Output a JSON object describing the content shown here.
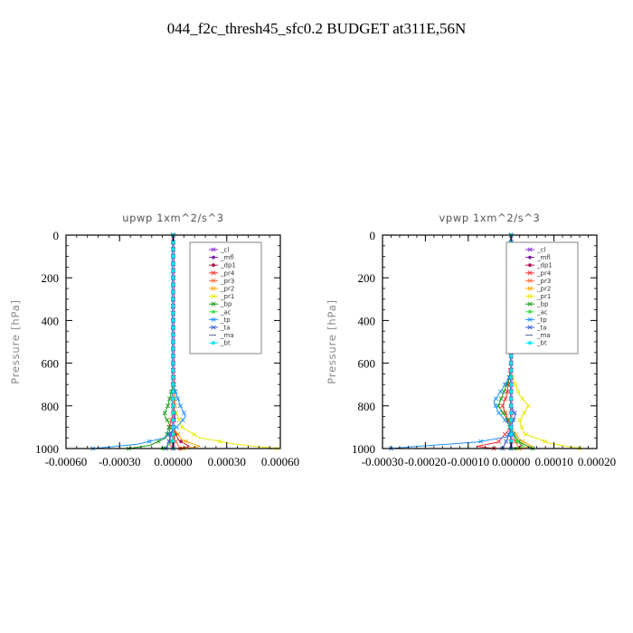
{
  "title": "044_f2c_thresh45_sfc0.2  BUDGET at311E,56N",
  "chart_data": [
    {
      "type": "line",
      "title": "upwp   1xm^2/s^3",
      "ylabel": "Pressure [hPa]",
      "xlabel": "",
      "xlim": [
        -0.0006,
        0.0006
      ],
      "ylim": [
        1000,
        0
      ],
      "xticks": [
        -0.0006,
        -0.0003,
        0.0,
        0.0003,
        0.0006
      ],
      "xtick_labels": [
        "-0.00060",
        "-0.00030",
        "0.00000",
        "0.00030",
        "0.00060"
      ],
      "yticks": [
        0,
        200,
        400,
        600,
        800,
        1000
      ],
      "ytick_labels": [
        "0",
        "200",
        "400",
        "600",
        "800",
        "1000"
      ],
      "legend_position": "top-right",
      "series": [
        {
          "name": "_cl",
          "color": "#8a2be2",
          "marker": "x",
          "points": [
            [
              0,
              0
            ],
            [
              0,
              200
            ],
            [
              0,
              400
            ],
            [
              0,
              600
            ],
            [
              0,
              800
            ],
            [
              0,
              1000
            ]
          ]
        },
        {
          "name": "_mfl",
          "color": "#7b1fa2",
          "marker": "dot",
          "points": [
            [
              0,
              0
            ],
            [
              0,
              200
            ],
            [
              0,
              400
            ],
            [
              0,
              600
            ],
            [
              0,
              800
            ],
            [
              0,
              1000
            ]
          ]
        },
        {
          "name": "_dp1",
          "color": "#b0174f",
          "marker": "dot",
          "points": [
            [
              0,
              0
            ],
            [
              0,
              600
            ],
            [
              0,
              800
            ],
            [
              0,
              900
            ],
            [
              3e-05,
              960
            ],
            [
              9e-05,
              990
            ],
            [
              4e-05,
              1000
            ]
          ]
        },
        {
          "name": "_pr4",
          "color": "#ff3030",
          "marker": "x",
          "points": [
            [
              0,
              0
            ],
            [
              0,
              600
            ],
            [
              1e-05,
              800
            ],
            [
              -2e-05,
              900
            ],
            [
              -2e-05,
              980
            ],
            [
              0,
              1000
            ]
          ]
        },
        {
          "name": "_pr3",
          "color": "#ff6a3a",
          "marker": "x",
          "points": [
            [
              0,
              0
            ],
            [
              0,
              600
            ],
            [
              0,
              800
            ],
            [
              0,
              900
            ],
            [
              1e-05,
              960
            ],
            [
              4e-05,
              1000
            ]
          ]
        },
        {
          "name": "_pr2",
          "color": "#ffa500",
          "marker": "x",
          "points": [
            [
              0,
              0
            ],
            [
              0,
              600
            ],
            [
              0,
              800
            ],
            [
              0,
              900
            ],
            [
              5e-05,
              960
            ],
            [
              0.00015,
              990
            ],
            [
              6e-05,
              1000
            ]
          ]
        },
        {
          "name": "_pr1",
          "color": "#e8e800",
          "marker": "x",
          "points": [
            [
              0,
              0
            ],
            [
              0,
              700
            ],
            [
              1e-05,
              820
            ],
            [
              5e-05,
              900
            ],
            [
              0.00015,
              950
            ],
            [
              0.00035,
              980
            ],
            [
              0.00058,
              1000
            ]
          ]
        },
        {
          "name": "_bp",
          "color": "#1a9a1a",
          "marker": "x",
          "points": [
            [
              0,
              0
            ],
            [
              0,
              700
            ],
            [
              -3e-05,
              800
            ],
            [
              -5e-05,
              840
            ],
            [
              -2e-05,
              890
            ],
            [
              -4e-05,
              950
            ],
            [
              -0.00013,
              985
            ],
            [
              -0.00025,
              1000
            ]
          ]
        },
        {
          "name": "_ac",
          "color": "#40e040",
          "marker": "dot",
          "points": [
            [
              0,
              0
            ],
            [
              0,
              900
            ],
            [
              0,
              950
            ],
            [
              -2e-05,
              980
            ],
            [
              -6e-05,
              1000
            ]
          ]
        },
        {
          "name": "_tp",
          "color": "#1e90ff",
          "marker": "x",
          "points": [
            [
              0,
              0
            ],
            [
              0,
              700
            ],
            [
              4e-05,
              800
            ],
            [
              7e-05,
              850
            ],
            [
              2e-05,
              900
            ],
            [
              -5e-05,
              950
            ],
            [
              -0.0002,
              980
            ],
            [
              -0.00045,
              1000
            ]
          ]
        },
        {
          "name": "_ta",
          "color": "#3a5fcd",
          "marker": "x",
          "points": [
            [
              0,
              0
            ],
            [
              0,
              800
            ],
            [
              1e-05,
              850
            ],
            [
              0,
              900
            ],
            [
              -2e-05,
              960
            ],
            [
              -4e-05,
              1000
            ]
          ]
        },
        {
          "name": "_ma",
          "color": "#5a6a90",
          "marker": "dash",
          "points": [
            [
              0,
              0
            ],
            [
              0,
              1000
            ]
          ]
        },
        {
          "name": "_bt",
          "color": "#00e5ee",
          "marker": "dot",
          "points": [
            [
              0,
              0
            ],
            [
              0,
              1000
            ]
          ]
        }
      ]
    },
    {
      "type": "line",
      "title": "vpwp   1xm^2/s^3",
      "ylabel": "Pressure [hPa]",
      "xlabel": "",
      "xlim": [
        -0.0003,
        0.0002
      ],
      "ylim": [
        1000,
        0
      ],
      "xticks": [
        -0.0003,
        -0.0002,
        -0.0001,
        0.0,
        0.0001,
        0.0002
      ],
      "xtick_labels": [
        "-0.00030",
        "-0.00020",
        "-0.00010",
        "0.00000",
        "0.00010",
        "0.00020"
      ],
      "yticks": [
        0,
        200,
        400,
        600,
        800,
        1000
      ],
      "ytick_labels": [
        "0",
        "200",
        "400",
        "600",
        "800",
        "1000"
      ],
      "legend_position": "top-right",
      "series": [
        {
          "name": "_cl",
          "color": "#8a2be2",
          "marker": "x",
          "points": [
            [
              0,
              0
            ],
            [
              0,
              200
            ],
            [
              0,
              400
            ],
            [
              0,
              600
            ],
            [
              0,
              800
            ],
            [
              0,
              1000
            ]
          ]
        },
        {
          "name": "_mfl",
          "color": "#7b1fa2",
          "marker": "dot",
          "points": [
            [
              0,
              0
            ],
            [
              0,
              200
            ],
            [
              0,
              400
            ],
            [
              0,
              600
            ],
            [
              0,
              800
            ],
            [
              0,
              1000
            ]
          ]
        },
        {
          "name": "_dp1",
          "color": "#b0174f",
          "marker": "dot",
          "points": [
            [
              0,
              0
            ],
            [
              0,
              800
            ],
            [
              0,
              900
            ],
            [
              1e-05,
              960
            ],
            [
              2.5e-05,
              985
            ],
            [
              1e-05,
              1000
            ]
          ]
        },
        {
          "name": "_pr4",
          "color": "#ff3030",
          "marker": "x",
          "points": [
            [
              0,
              0
            ],
            [
              0,
              600
            ],
            [
              -1e-05,
              750
            ],
            [
              -2e-05,
              800
            ],
            [
              0,
              900
            ],
            [
              -3e-05,
              970
            ],
            [
              -8e-05,
              990
            ],
            [
              -4e-05,
              1000
            ]
          ]
        },
        {
          "name": "_pr3",
          "color": "#ff6a3a",
          "marker": "x",
          "points": [
            [
              0,
              0
            ],
            [
              0,
              800
            ],
            [
              0,
              900
            ],
            [
              1e-05,
              970
            ],
            [
              2e-05,
              1000
            ]
          ]
        },
        {
          "name": "_pr2",
          "color": "#ffa500",
          "marker": "x",
          "points": [
            [
              0,
              0
            ],
            [
              0,
              800
            ],
            [
              0,
              900
            ],
            [
              2e-05,
              960
            ],
            [
              5e-05,
              990
            ],
            [
              2e-05,
              1000
            ]
          ]
        },
        {
          "name": "_pr1",
          "color": "#e8e800",
          "marker": "x",
          "points": [
            [
              0,
              0
            ],
            [
              0,
              650
            ],
            [
              2e-05,
              750
            ],
            [
              4e-05,
              800
            ],
            [
              2e-05,
              870
            ],
            [
              3e-05,
              930
            ],
            [
              9e-05,
              975
            ],
            [
              0.00016,
              1000
            ]
          ]
        },
        {
          "name": "_bp",
          "color": "#1a9a1a",
          "marker": "x",
          "points": [
            [
              0,
              0
            ],
            [
              0,
              650
            ],
            [
              -2e-05,
              750
            ],
            [
              -3e-05,
              800
            ],
            [
              -1e-05,
              860
            ],
            [
              0,
              920
            ],
            [
              2e-05,
              970
            ],
            [
              5e-05,
              1000
            ]
          ]
        },
        {
          "name": "_ac",
          "color": "#40e040",
          "marker": "dot",
          "points": [
            [
              0,
              0
            ],
            [
              0,
              900
            ],
            [
              1e-05,
              960
            ],
            [
              3e-05,
              990
            ],
            [
              1e-05,
              1000
            ]
          ]
        },
        {
          "name": "_tp",
          "color": "#1e90ff",
          "marker": "x",
          "points": [
            [
              0,
              0
            ],
            [
              0,
              650
            ],
            [
              -2e-05,
              720
            ],
            [
              -4e-05,
              780
            ],
            [
              -3e-05,
              830
            ],
            [
              0,
              900
            ],
            [
              5e-06,
              940
            ],
            [
              -8e-05,
              970
            ],
            [
              -0.00022,
              990
            ],
            [
              -0.00028,
              1000
            ]
          ]
        },
        {
          "name": "_ta",
          "color": "#3a5fcd",
          "marker": "x",
          "points": [
            [
              0,
              0
            ],
            [
              0,
              800
            ],
            [
              1e-05,
              840
            ],
            [
              0,
              900
            ],
            [
              -1e-05,
              960
            ],
            [
              -2e-05,
              1000
            ]
          ]
        },
        {
          "name": "_ma",
          "color": "#5a6a90",
          "marker": "dash",
          "points": [
            [
              0,
              0
            ],
            [
              0,
              1000
            ]
          ]
        },
        {
          "name": "_bt",
          "color": "#00e5ee",
          "marker": "dot",
          "points": [
            [
              0,
              0
            ],
            [
              0,
              1000
            ]
          ]
        }
      ]
    }
  ]
}
